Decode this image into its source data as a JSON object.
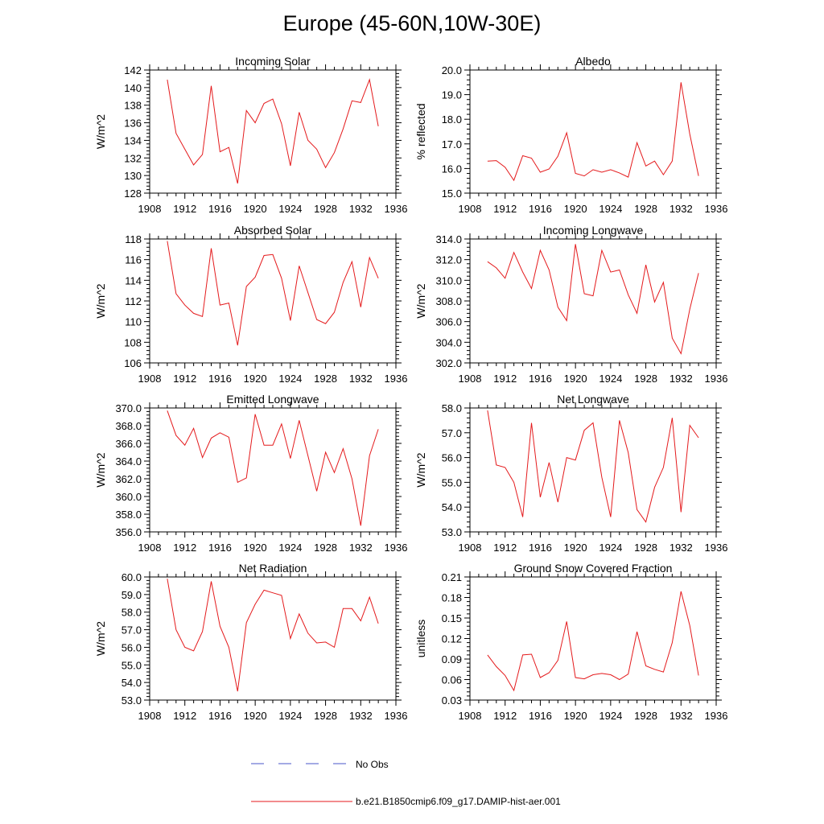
{
  "title": "Europe (45-60N,10W-30E)",
  "colors": {
    "model_line": "#e41a1c",
    "obs_line": "#4a56c8",
    "axis": "#000000"
  },
  "legend": {
    "obs_label": "No Obs",
    "model_label": "b.e21.B1850cmip6.f09_g17.DAMIP-hist-aer.001"
  },
  "chart_data": [
    {
      "type": "line",
      "title": "Incoming Solar",
      "ylabel": "W/m^2",
      "xlim": [
        1908,
        1936
      ],
      "ylim": [
        128,
        142
      ],
      "xticks": [
        1908,
        1912,
        1916,
        1920,
        1924,
        1928,
        1932,
        1936
      ],
      "yticks": [
        "128",
        "130",
        "132",
        "134",
        "136",
        "138",
        "140",
        "142"
      ],
      "x": [
        1910,
        1911,
        1912,
        1913,
        1914,
        1915,
        1916,
        1917,
        1918,
        1919,
        1920,
        1921,
        1922,
        1923,
        1924,
        1925,
        1926,
        1927,
        1928,
        1929,
        1930,
        1931,
        1932,
        1933,
        1934
      ],
      "series": [
        {
          "values": [
            140.9,
            134.8,
            133.0,
            131.2,
            132.4,
            140.2,
            132.7,
            133.2,
            129.1,
            137.4,
            136.0,
            138.2,
            138.7,
            135.9,
            131.1,
            137.2,
            134.0,
            133.0,
            130.9,
            132.6,
            135.3,
            138.5,
            138.3,
            140.9,
            135.6
          ]
        }
      ]
    },
    {
      "type": "line",
      "title": "Albedo",
      "ylabel": "% reflected",
      "xlim": [
        1908,
        1936
      ],
      "ylim": [
        15,
        20
      ],
      "xticks": [
        1908,
        1912,
        1916,
        1920,
        1924,
        1928,
        1932,
        1936
      ],
      "yticks": [
        "15.0",
        "16.0",
        "17.0",
        "18.0",
        "19.0",
        "20.0"
      ],
      "x": [
        1910,
        1911,
        1912,
        1913,
        1914,
        1915,
        1916,
        1917,
        1918,
        1919,
        1920,
        1921,
        1922,
        1923,
        1924,
        1925,
        1926,
        1927,
        1928,
        1929,
        1930,
        1931,
        1932,
        1933,
        1934
      ],
      "series": [
        {
          "values": [
            16.3,
            16.32,
            16.05,
            15.52,
            16.52,
            16.42,
            15.85,
            15.98,
            16.5,
            17.45,
            15.8,
            15.7,
            15.95,
            15.85,
            15.95,
            15.82,
            15.65,
            17.05,
            16.1,
            16.3,
            15.75,
            16.3,
            19.5,
            17.4,
            15.7
          ]
        }
      ]
    },
    {
      "type": "line",
      "title": "Absorbed Solar",
      "ylabel": "W/m^2",
      "xlim": [
        1908,
        1936
      ],
      "ylim": [
        106,
        118
      ],
      "xticks": [
        1908,
        1912,
        1916,
        1920,
        1924,
        1928,
        1932,
        1936
      ],
      "yticks": [
        "106",
        "108",
        "110",
        "112",
        "114",
        "116",
        "118"
      ],
      "x": [
        1910,
        1911,
        1912,
        1913,
        1914,
        1915,
        1916,
        1917,
        1918,
        1919,
        1920,
        1921,
        1922,
        1923,
        1924,
        1925,
        1926,
        1927,
        1928,
        1929,
        1930,
        1931,
        1932,
        1933,
        1934
      ],
      "series": [
        {
          "values": [
            117.8,
            112.7,
            111.6,
            110.8,
            110.5,
            117.1,
            111.6,
            111.8,
            107.7,
            113.4,
            114.3,
            116.4,
            116.5,
            114.2,
            110.1,
            115.4,
            112.8,
            110.2,
            109.8,
            110.9,
            113.8,
            115.8,
            111.4,
            116.2,
            114.2
          ]
        }
      ]
    },
    {
      "type": "line",
      "title": "Incoming Longwave",
      "ylabel": "W/m^2",
      "xlim": [
        1908,
        1936
      ],
      "ylim": [
        302,
        314
      ],
      "xticks": [
        1908,
        1912,
        1916,
        1920,
        1924,
        1928,
        1932,
        1936
      ],
      "yticks": [
        "302.0",
        "304.0",
        "306.0",
        "308.0",
        "310.0",
        "312.0",
        "314.0"
      ],
      "x": [
        1910,
        1911,
        1912,
        1913,
        1914,
        1915,
        1916,
        1917,
        1918,
        1919,
        1920,
        1921,
        1922,
        1923,
        1924,
        1925,
        1926,
        1927,
        1928,
        1929,
        1930,
        1931,
        1932,
        1933,
        1934
      ],
      "series": [
        {
          "values": [
            311.8,
            311.2,
            310.2,
            312.7,
            310.8,
            309.2,
            312.9,
            311.0,
            307.4,
            306.1,
            313.5,
            308.7,
            308.5,
            312.9,
            310.8,
            311.0,
            308.6,
            306.8,
            311.5,
            307.9,
            309.8,
            304.4,
            302.9,
            307.2,
            310.7
          ]
        }
      ]
    },
    {
      "type": "line",
      "title": "Emitted Longwave",
      "ylabel": "W/m^2",
      "xlim": [
        1908,
        1936
      ],
      "ylim": [
        356,
        370
      ],
      "xticks": [
        1908,
        1912,
        1916,
        1920,
        1924,
        1928,
        1932,
        1936
      ],
      "yticks": [
        "356.0",
        "358.0",
        "360.0",
        "362.0",
        "364.0",
        "366.0",
        "368.0",
        "370.0"
      ],
      "x": [
        1910,
        1911,
        1912,
        1913,
        1914,
        1915,
        1916,
        1917,
        1918,
        1919,
        1920,
        1921,
        1922,
        1923,
        1924,
        1925,
        1926,
        1927,
        1928,
        1929,
        1930,
        1931,
        1932,
        1933,
        1934
      ],
      "series": [
        {
          "values": [
            369.7,
            366.9,
            365.8,
            367.7,
            364.4,
            366.6,
            367.2,
            366.7,
            361.6,
            362.1,
            369.3,
            365.8,
            365.8,
            368.2,
            364.3,
            368.6,
            364.6,
            360.6,
            365.0,
            362.7,
            365.4,
            362.0,
            356.7,
            364.6,
            367.6
          ]
        }
      ]
    },
    {
      "type": "line",
      "title": "Net Longwave",
      "ylabel": "W/m^2",
      "xlim": [
        1908,
        1936
      ],
      "ylim": [
        53,
        58
      ],
      "xticks": [
        1908,
        1912,
        1916,
        1920,
        1924,
        1928,
        1932,
        1936
      ],
      "yticks": [
        "53.0",
        "54.0",
        "55.0",
        "56.0",
        "57.0",
        "58.0"
      ],
      "x": [
        1910,
        1911,
        1912,
        1913,
        1914,
        1915,
        1916,
        1917,
        1918,
        1919,
        1920,
        1921,
        1922,
        1923,
        1924,
        1925,
        1926,
        1927,
        1928,
        1929,
        1930,
        1931,
        1932,
        1933,
        1934
      ],
      "series": [
        {
          "values": [
            57.9,
            55.7,
            55.6,
            55.0,
            53.6,
            57.4,
            54.4,
            55.8,
            54.2,
            56.0,
            55.9,
            57.1,
            57.4,
            55.2,
            53.6,
            57.5,
            56.2,
            53.9,
            53.4,
            54.8,
            55.6,
            57.6,
            53.8,
            57.3,
            56.8
          ]
        }
      ]
    },
    {
      "type": "line",
      "title": "Net Radiation",
      "ylabel": "W/m^2",
      "xlim": [
        1908,
        1936
      ],
      "ylim": [
        53,
        60
      ],
      "xticks": [
        1908,
        1912,
        1916,
        1920,
        1924,
        1928,
        1932,
        1936
      ],
      "yticks": [
        "53.0",
        "54.0",
        "55.0",
        "56.0",
        "57.0",
        "58.0",
        "59.0",
        "60.0"
      ],
      "x": [
        1910,
        1911,
        1912,
        1913,
        1914,
        1915,
        1916,
        1917,
        1918,
        1919,
        1920,
        1921,
        1922,
        1923,
        1924,
        1925,
        1926,
        1927,
        1928,
        1929,
        1930,
        1931,
        1932,
        1933,
        1934
      ],
      "series": [
        {
          "values": [
            59.9,
            57.0,
            56.0,
            55.8,
            56.9,
            59.75,
            57.2,
            56.0,
            53.5,
            57.4,
            58.45,
            59.25,
            59.1,
            58.95,
            56.5,
            57.9,
            56.8,
            56.25,
            56.3,
            56.0,
            58.2,
            58.2,
            57.5,
            58.85,
            57.35
          ]
        }
      ]
    },
    {
      "type": "line",
      "title": "Ground Snow Covered Fraction",
      "ylabel": "unitless",
      "xlim": [
        1908,
        1936
      ],
      "ylim": [
        0.03,
        0.21
      ],
      "xticks": [
        1908,
        1912,
        1916,
        1920,
        1924,
        1928,
        1932,
        1936
      ],
      "yticks": [
        "0.03",
        "0.06",
        "0.09",
        "0.12",
        "0.15",
        "0.18",
        "0.21"
      ],
      "x": [
        1910,
        1911,
        1912,
        1913,
        1914,
        1915,
        1916,
        1917,
        1918,
        1919,
        1920,
        1921,
        1922,
        1923,
        1924,
        1925,
        1926,
        1927,
        1928,
        1929,
        1930,
        1931,
        1932,
        1933,
        1934
      ],
      "series": [
        {
          "values": [
            0.096,
            0.079,
            0.066,
            0.044,
            0.096,
            0.097,
            0.063,
            0.07,
            0.088,
            0.145,
            0.063,
            0.061,
            0.067,
            0.069,
            0.067,
            0.06,
            0.068,
            0.13,
            0.08,
            0.075,
            0.071,
            0.114,
            0.189,
            0.139,
            0.066
          ]
        }
      ]
    }
  ]
}
